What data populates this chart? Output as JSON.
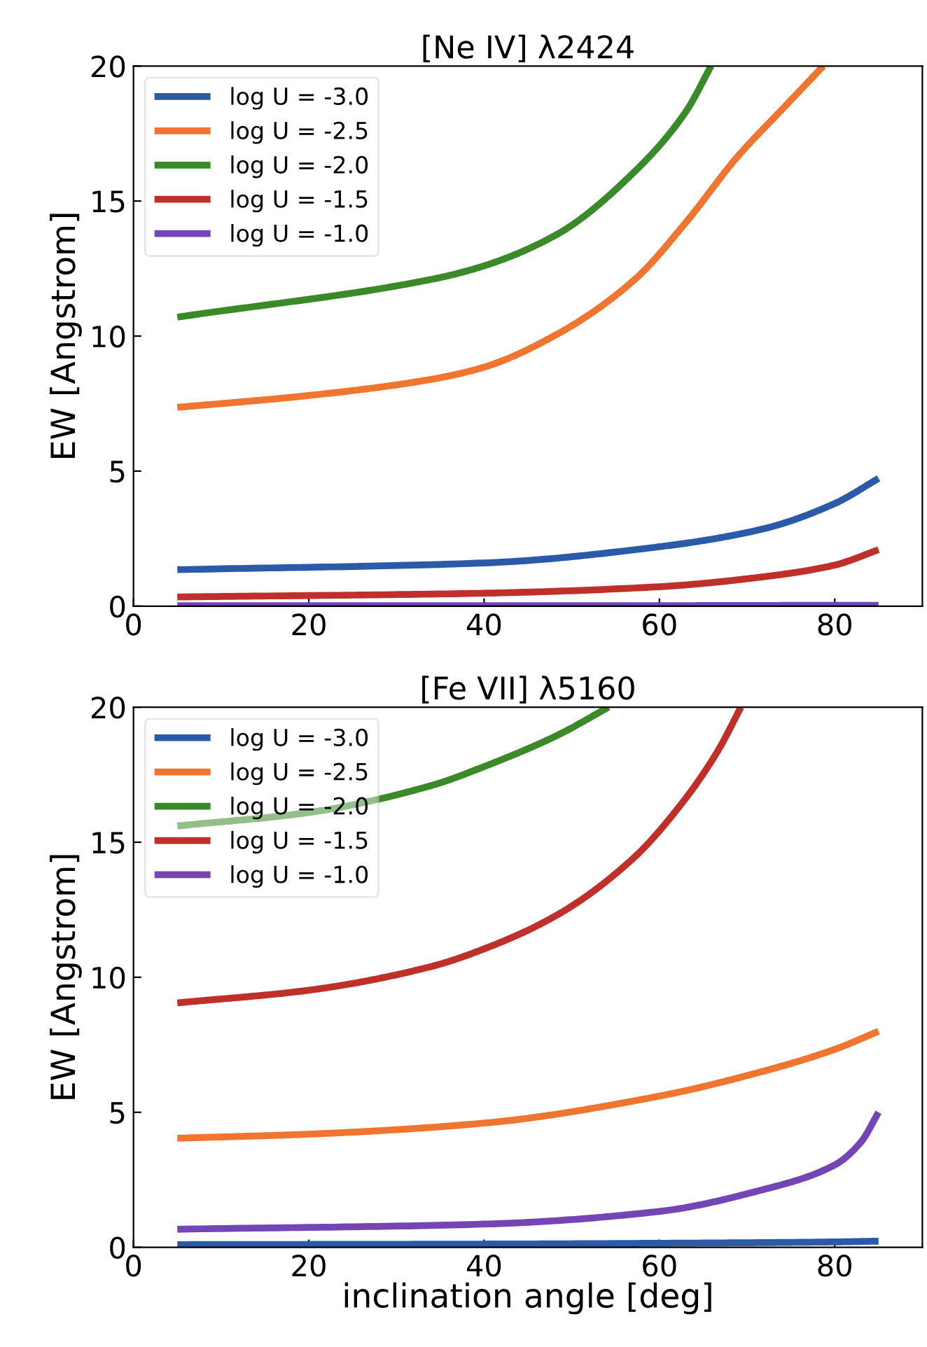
{
  "chart_data": [
    {
      "type": "line",
      "title": "[Ne IV] λ2424",
      "ylabel": "EW [Angstrom]",
      "xlim": [
        0,
        90
      ],
      "ylim": [
        0,
        20
      ],
      "xticks": [
        0,
        20,
        40,
        60,
        80
      ],
      "yticks": [
        0,
        5,
        10,
        15,
        20
      ],
      "grid": false,
      "legend": "top left",
      "marker": "none",
      "line_style": "solid",
      "series": [
        {
          "name": "log U = -3.0",
          "color": "#2a5aa8",
          "x": [
            5,
            40,
            60,
            71.7,
            80,
            85
          ],
          "values": [
            1.35,
            1.6,
            2.2,
            2.85,
            3.8,
            4.73
          ]
        },
        {
          "name": "log U = -2.5",
          "color": "#ef7530",
          "x": [
            5,
            20,
            34,
            40,
            48.5,
            57.2,
            63,
            68.8,
            74.6,
            78.7
          ],
          "values": [
            7.36,
            7.8,
            8.4,
            8.85,
            10.1,
            12.1,
            14.2,
            16.6,
            18.6,
            20
          ]
        },
        {
          "name": "log U = -2.0",
          "color": "#3a8a2a",
          "x": [
            5,
            34,
            40,
            48.5,
            57.2,
            63,
            65.9
          ],
          "values": [
            10.7,
            12.1,
            12.6,
            13.8,
            16.1,
            18.3,
            20
          ]
        },
        {
          "name": "log U = -1.5",
          "color": "#c0302a",
          "x": [
            5,
            40,
            60,
            71.7,
            80,
            85
          ],
          "values": [
            0.34,
            0.48,
            0.72,
            1.08,
            1.52,
            2.09
          ]
        },
        {
          "name": "log U = -1.0",
          "color": "#7445b5",
          "x": [
            5,
            40,
            60,
            80,
            85
          ],
          "values": [
            0.02,
            0.02,
            0.02,
            0.03,
            0.03
          ]
        }
      ]
    },
    {
      "type": "line",
      "title": "[Fe VII] λ5160",
      "xlabel": "inclination angle [deg]",
      "ylabel": "EW [Angstrom]",
      "xlim": [
        0,
        90
      ],
      "ylim": [
        0,
        20
      ],
      "xticks": [
        0,
        20,
        40,
        60,
        80
      ],
      "yticks": [
        0,
        5,
        10,
        15,
        20
      ],
      "grid": false,
      "legend": "top left",
      "marker": "none",
      "line_style": "solid",
      "series": [
        {
          "name": "log U = -3.0",
          "color": "#2a5aa8",
          "x": [
            5,
            40,
            60,
            80,
            85
          ],
          "values": [
            0.1,
            0.12,
            0.15,
            0.2,
            0.23
          ]
        },
        {
          "name": "log U = -2.5",
          "color": "#ef7530",
          "x": [
            5,
            20,
            40,
            60,
            71.4,
            80,
            85
          ],
          "values": [
            4.04,
            4.19,
            4.6,
            5.6,
            6.48,
            7.33,
            8.0
          ]
        },
        {
          "name": "log U = -2.0",
          "color": "#3a8a2a",
          "x": [
            5,
            20,
            34,
            40,
            48.3,
            54.2
          ],
          "values": [
            15.6,
            16.1,
            17.1,
            17.8,
            18.95,
            20
          ]
        },
        {
          "name": "log U = -1.5",
          "color": "#c0302a",
          "x": [
            5,
            20,
            34,
            40,
            48.3,
            57,
            62.7,
            66.7,
            69.3
          ],
          "values": [
            9.05,
            9.52,
            10.4,
            11.05,
            12.3,
            14.4,
            16.5,
            18.4,
            20
          ]
        },
        {
          "name": "log U = -1.0",
          "color": "#7445b5",
          "x": [
            5,
            40,
            60,
            71.4,
            80,
            83,
            85
          ],
          "values": [
            0.67,
            0.86,
            1.33,
            2.1,
            3.05,
            3.9,
            5.0
          ]
        }
      ]
    }
  ]
}
